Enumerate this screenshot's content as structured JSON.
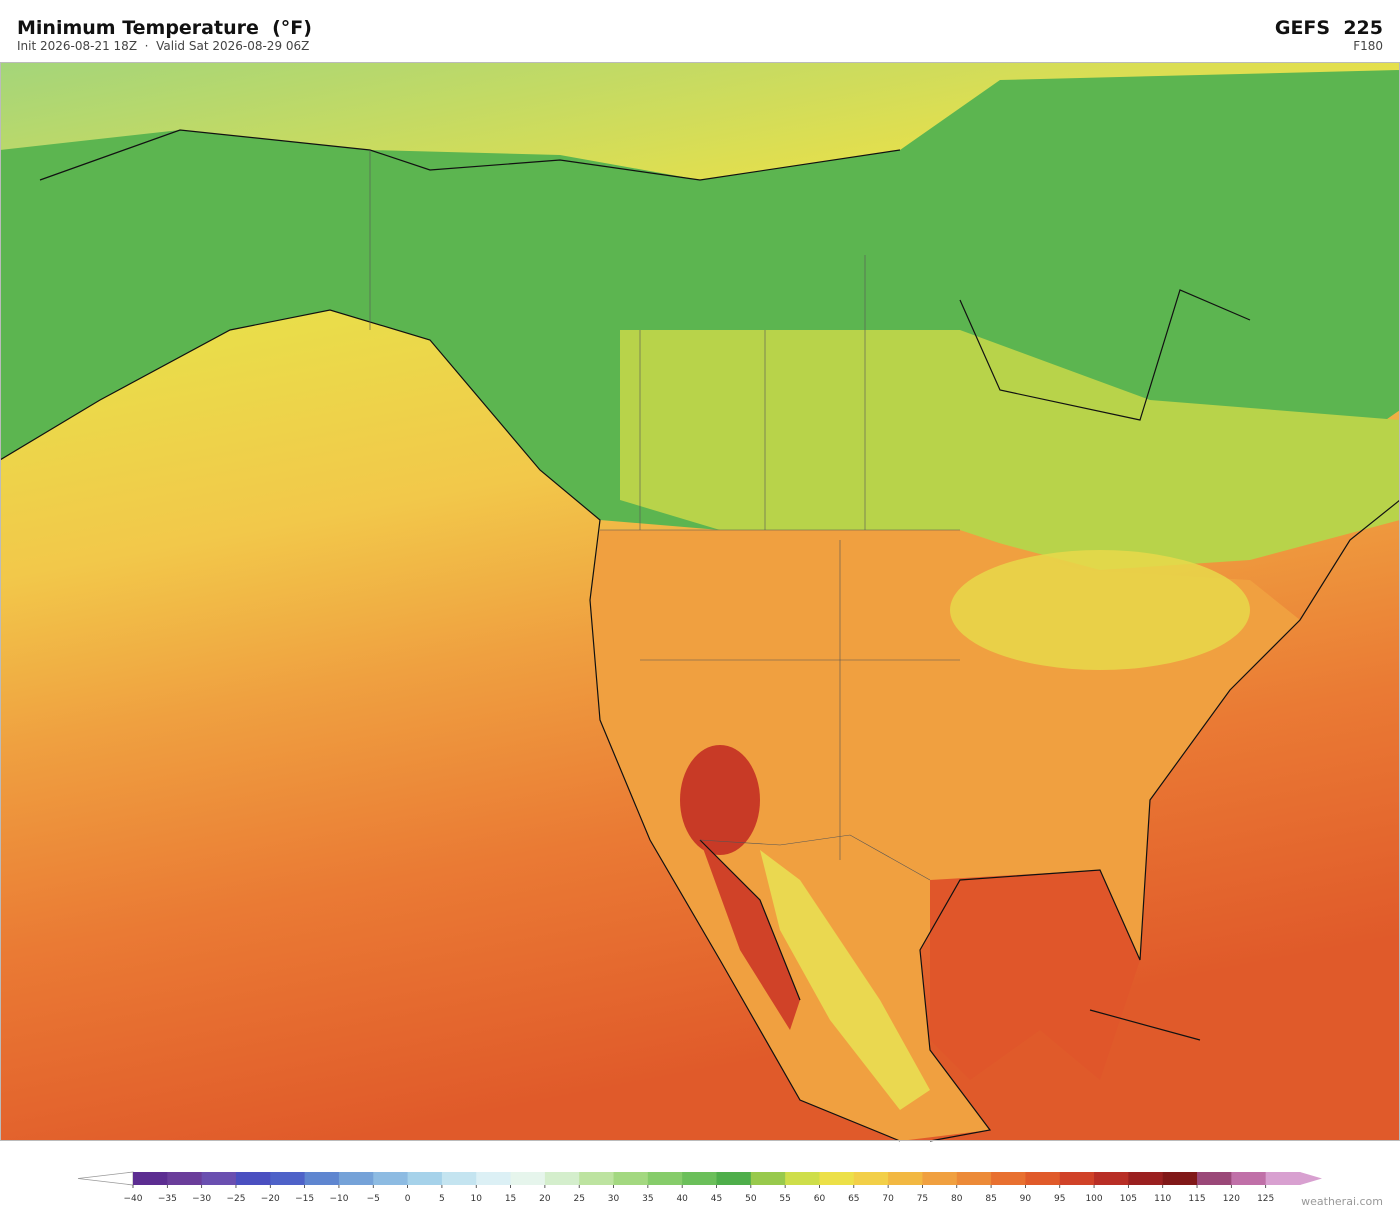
{
  "header": {
    "title": "Minimum Temperature  (°F)",
    "subtitle": "Init 2026-08-21 18Z  ·  Valid Sat 2026-08-29 06Z",
    "model": "GEFS  225",
    "forecast_hour": "F180"
  },
  "colorbar": {
    "range": [
      -40,
      130
    ],
    "colors": [
      "#5c2d91",
      "#6a3d9a",
      "#6a4fb0",
      "#4a4fc0",
      "#4e62c8",
      "#5f86d0",
      "#75a2d8",
      "#8dbbe2",
      "#a6d2ea",
      "#c4e4f0",
      "#dcf0f5",
      "#e6f5ec",
      "#d4eecc",
      "#bde3a0",
      "#a3d880",
      "#86cc6a",
      "#6bbf5a",
      "#4eae4a",
      "#98c94c",
      "#cede4a",
      "#ece048",
      "#f2cf48",
      "#f2b842",
      "#f0a040",
      "#ec8a38",
      "#e87030",
      "#e05a2a",
      "#d04228",
      "#b82e26",
      "#9a2020",
      "#801818",
      "#9a4878",
      "#c070a8",
      "#d8a0d0"
    ],
    "ticks": [
      {
        "value": -40,
        "label": "−40"
      },
      {
        "value": -35,
        "label": "−35"
      },
      {
        "value": -30,
        "label": "−30"
      },
      {
        "value": -25,
        "label": "−25"
      },
      {
        "value": -20,
        "label": "−20"
      },
      {
        "value": -15,
        "label": "−15"
      },
      {
        "value": -10,
        "label": "−10"
      },
      {
        "value": -5,
        "label": "−5"
      },
      0,
      5,
      10,
      15,
      20,
      25,
      30,
      35,
      40,
      45,
      50,
      55,
      60,
      65,
      70,
      75,
      80,
      85,
      90,
      95,
      100,
      105,
      110,
      115,
      120,
      125
    ]
  },
  "footer": {
    "credit": "weatherai.com"
  }
}
